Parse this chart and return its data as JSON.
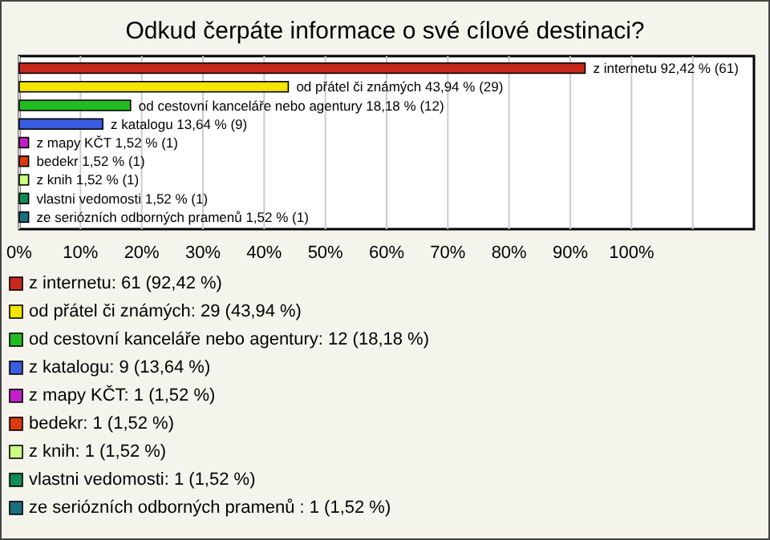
{
  "chart_data": {
    "type": "bar",
    "orientation": "horizontal",
    "title": "Odkud čerpáte informace o své cílové destinaci?",
    "categories": [
      null,
      null,
      null,
      null,
      null,
      null,
      null,
      null,
      null
    ],
    "values": [
      92.42,
      43.94,
      18.18,
      13.64,
      1.52,
      1.52,
      1.52,
      1.52,
      1.52
    ],
    "colors": [
      "#c8281c",
      "#f5e400",
      "#22bb22",
      "#3a5ce0",
      "#c020c8",
      "#d83a12",
      "#c8ff80",
      "#128a55",
      "#1a7080"
    ],
    "value_labels": [
      "z internetu 92,42 % (61)",
      "od přátel či známých 43,94 % (29)",
      "od cestovní kanceláře nebo agentury 18,18 % (12)",
      "z katalogu 13,64 % (9)",
      "z mapy KČT 1,52 % (1)",
      "bedekr 1,52 % (1)",
      "z knih 1,52 % (1)",
      "vlastni vedomosti 1,52 % (1)",
      "ze seriózních odborných pramenů  1,52 % (1)"
    ],
    "xlim": [
      0,
      120
    ],
    "xticks": [
      {
        "value": 0,
        "label": "0%"
      },
      {
        "value": 10,
        "label": "10%"
      },
      {
        "value": 20,
        "label": "20%"
      },
      {
        "value": 30,
        "label": "30%"
      },
      {
        "value": 40,
        "label": "40%"
      },
      {
        "value": 50,
        "label": "50%"
      },
      {
        "value": 60,
        "label": "60%"
      },
      {
        "value": 70,
        "label": "70%"
      },
      {
        "value": 80,
        "label": "80%"
      },
      {
        "value": 90,
        "label": "90%"
      },
      {
        "value": 100,
        "label": "100%"
      },
      {
        "value": 110,
        "label": null
      }
    ],
    "grid": "x",
    "annotations": [
      "z internetu: 61 (92,42 %)",
      "od přátel či známých: 29 (43,94 %)",
      "od cestovní kanceláře nebo agentury: 12 (18,18 %)",
      "z katalogu: 9 (13,64 %)",
      "z mapy KČT: 1 (1,52 %)",
      "bedekr: 1 (1,52 %)",
      "z knih: 1 (1,52 %)",
      "vlastni vedomosti: 1 (1,52 %)",
      "ze seriózních odborných pramenů : 1 (1,52 %)"
    ]
  }
}
